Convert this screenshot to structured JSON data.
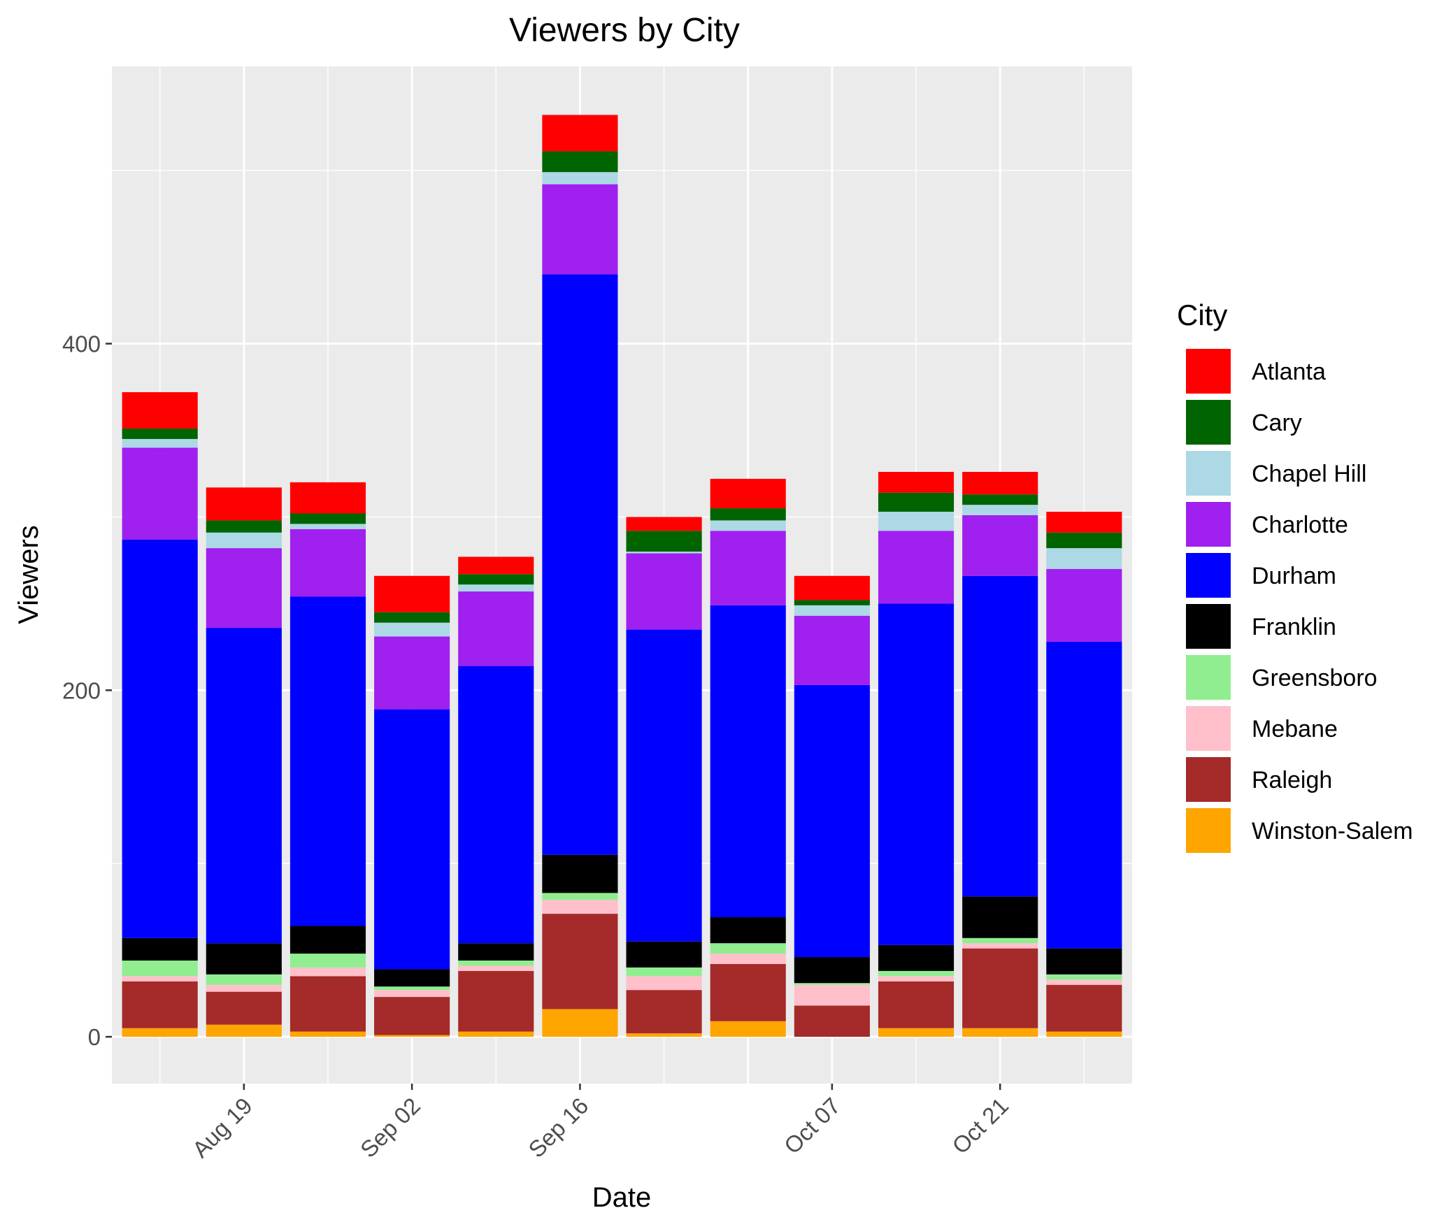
{
  "chart_data": {
    "type": "bar",
    "stacked": true,
    "title": "Viewers by City",
    "xlabel": "Date",
    "ylabel": "Viewers",
    "x_tick_labels": [
      "Aug 19",
      "Sep 02",
      "Sep 16",
      "Oct 07",
      "Oct 21"
    ],
    "y_tick_labels": [
      "0",
      "200",
      "400"
    ],
    "ylim": [
      -27,
      560
    ],
    "grid": true,
    "legend": {
      "title": "City",
      "position": "right"
    },
    "categories": [
      "2024-08-12",
      "2024-08-19",
      "2024-08-26",
      "2024-09-02",
      "2024-09-09",
      "2024-09-16",
      "2024-09-23",
      "2024-09-30",
      "2024-10-07",
      "2024-10-14",
      "2024-10-21",
      "2024-10-28"
    ],
    "series": [
      {
        "name": "Winston-Salem",
        "color": "#FFA500",
        "values": [
          5,
          7,
          3,
          1,
          3,
          16,
          2,
          9,
          0,
          5,
          5,
          3
        ]
      },
      {
        "name": "Raleigh",
        "color": "#A52A2A",
        "values": [
          27,
          19,
          32,
          22,
          35,
          55,
          25,
          33,
          18,
          27,
          46,
          27
        ]
      },
      {
        "name": "Mebane",
        "color": "#FFC0CB",
        "values": [
          3,
          4,
          5,
          4,
          3,
          8,
          8,
          6,
          12,
          3,
          3,
          3
        ]
      },
      {
        "name": "Greensboro",
        "color": "#90EE90",
        "values": [
          9,
          6,
          8,
          2,
          3,
          4,
          5,
          6,
          1,
          3,
          3,
          3
        ]
      },
      {
        "name": "Franklin",
        "color": "#000000",
        "values": [
          13,
          18,
          16,
          10,
          10,
          22,
          15,
          15,
          15,
          15,
          24,
          15
        ]
      },
      {
        "name": "Durham",
        "color": "#0000FF",
        "values": [
          230,
          182,
          190,
          150,
          160,
          335,
          180,
          180,
          157,
          197,
          185,
          177
        ]
      },
      {
        "name": "Charlotte",
        "color": "#A020F0",
        "values": [
          53,
          46,
          39,
          42,
          43,
          52,
          44,
          43,
          40,
          42,
          35,
          42
        ]
      },
      {
        "name": "Chapel Hill",
        "color": "#ADD8E6",
        "values": [
          5,
          9,
          3,
          8,
          4,
          7,
          1,
          6,
          6,
          11,
          6,
          12
        ]
      },
      {
        "name": "Cary",
        "color": "#006400",
        "values": [
          6,
          7,
          6,
          6,
          6,
          12,
          12,
          7,
          3,
          11,
          6,
          9
        ]
      },
      {
        "name": "Atlanta",
        "color": "#FF0000",
        "values": [
          21,
          19,
          18,
          21,
          10,
          21,
          8,
          17,
          14,
          12,
          13,
          12
        ]
      }
    ]
  }
}
